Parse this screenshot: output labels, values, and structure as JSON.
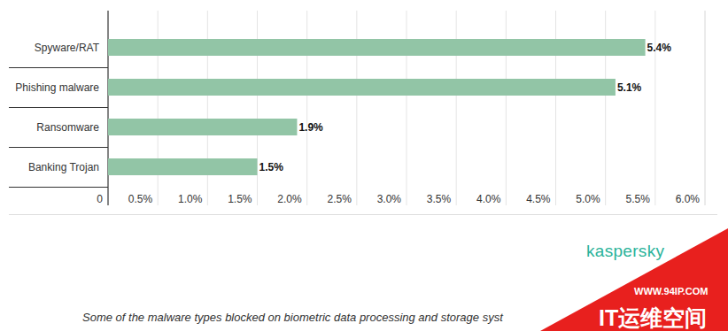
{
  "chart_data": {
    "type": "bar",
    "orientation": "horizontal",
    "categories": [
      "Spyware/RAT",
      "Phishing malware",
      "Ransomware",
      "Banking Trojan"
    ],
    "values": [
      5.4,
      5.1,
      1.9,
      1.5
    ],
    "value_labels": [
      "5.4%",
      "5.1%",
      "1.9%",
      "1.5%"
    ],
    "color": "#92c5a6",
    "xlim": [
      0,
      6
    ],
    "xticks": [
      0,
      {
        "value": 0.5,
        "label": "0.5%"
      },
      {
        "value": 1,
        "label": "1.0%"
      },
      {
        "value": 1.5,
        "label": "1.5%"
      },
      {
        "value": 2,
        "label": "2.0%"
      },
      {
        "value": 2.5,
        "label": "2.5%"
      },
      {
        "value": 3,
        "label": "3.0%"
      },
      {
        "value": 3.5,
        "label": "3.5%"
      },
      {
        "value": 4,
        "label": "4.0%"
      },
      {
        "value": 4.5,
        "label": "4.5%"
      },
      {
        "value": 5,
        "label": "5.0%"
      },
      {
        "value": 5.5,
        "label": "5.5%"
      },
      {
        "value": 6,
        "label": "6.0%"
      }
    ],
    "grid": true,
    "data_labels": true,
    "caption": "Some of the malware types blocked on biometric data processing and storage syst",
    "annotations": [
      "kaspersky",
      "WWW.94IP.COM",
      "IT运维空间"
    ]
  }
}
